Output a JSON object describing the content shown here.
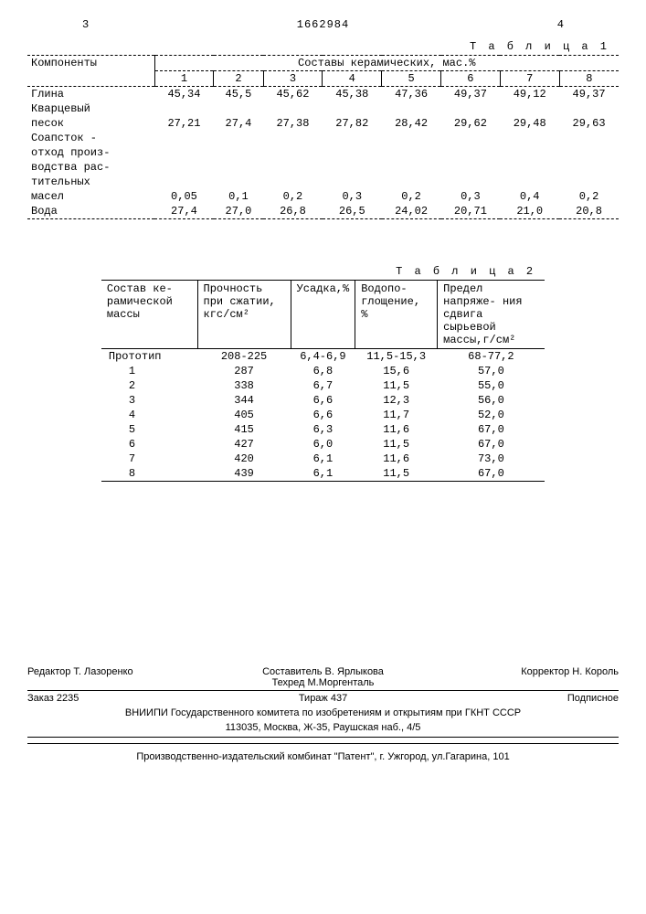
{
  "header": {
    "left_page": "3",
    "patent": "1662984",
    "right_page": "4"
  },
  "table1": {
    "title": "Т а б л и ц а   1",
    "head_components": "Компоненты",
    "head_group": "Составы керамических, мас.%",
    "cols": [
      "1",
      "2",
      "3",
      "4",
      "5",
      "6",
      "7",
      "8"
    ],
    "rows": [
      {
        "label": "Глина",
        "v": [
          "45,34",
          "45,5",
          "45,62",
          "45,38",
          "47,36",
          "49,37",
          "49,12",
          "49,37"
        ]
      },
      {
        "label": "Кварцевый",
        "v": [
          "",
          "",
          "",
          "",
          "",
          "",
          "",
          ""
        ]
      },
      {
        "label": "песок",
        "v": [
          "27,21",
          "27,4",
          "27,38",
          "27,82",
          "28,42",
          "29,62",
          "29,48",
          "29,63"
        ]
      },
      {
        "label": "Соапсток -",
        "v": [
          "",
          "",
          "",
          "",
          "",
          "",
          "",
          ""
        ]
      },
      {
        "label": "отход произ-",
        "v": [
          "",
          "",
          "",
          "",
          "",
          "",
          "",
          ""
        ]
      },
      {
        "label": "водства рас-",
        "v": [
          "",
          "",
          "",
          "",
          "",
          "",
          "",
          ""
        ]
      },
      {
        "label": "тительных",
        "v": [
          "",
          "",
          "",
          "",
          "",
          "",
          "",
          ""
        ]
      },
      {
        "label": "масел",
        "v": [
          "0,05",
          "0,1",
          "0,2",
          "0,3",
          "0,2",
          "0,3",
          "0,4",
          "0,2"
        ]
      },
      {
        "label": "Вода",
        "v": [
          "27,4",
          "27,0",
          "26,8",
          "26,5",
          "24,02",
          "20,71",
          "21,0",
          "20,8"
        ]
      }
    ]
  },
  "table2": {
    "title": "Т а б л и ц а   2",
    "head": [
      "Состав ке- рамической массы",
      "Прочность при сжатии, кгс/см²",
      "Усадка,%",
      "Водопо- глощение, %",
      "Предел напряже- ния сдвига сырьевой массы,г/см²"
    ],
    "rows": [
      {
        "c": [
          "Прототип",
          "208-225",
          "6,4-6,9",
          "11,5-15,3",
          "68-77,2"
        ],
        "indent": false
      },
      {
        "c": [
          "1",
          "287",
          "6,8",
          "15,6",
          "57,0"
        ],
        "indent": true
      },
      {
        "c": [
          "2",
          "338",
          "6,7",
          "11,5",
          "55,0"
        ],
        "indent": true
      },
      {
        "c": [
          "3",
          "344",
          "6,6",
          "12,3",
          "56,0"
        ],
        "indent": true
      },
      {
        "c": [
          "4",
          "405",
          "6,6",
          "11,7",
          "52,0"
        ],
        "indent": true
      },
      {
        "c": [
          "5",
          "415",
          "6,3",
          "11,6",
          "67,0"
        ],
        "indent": true
      },
      {
        "c": [
          "6",
          "427",
          "6,0",
          "11,5",
          "67,0"
        ],
        "indent": true
      },
      {
        "c": [
          "7",
          "420",
          "6,1",
          "11,6",
          "73,0"
        ],
        "indent": true
      },
      {
        "c": [
          "8",
          "439",
          "6,1",
          "11,5",
          "67,0"
        ],
        "indent": true
      }
    ]
  },
  "footer": {
    "editor": "Редактор Т. Лазоренко",
    "compiler": "Составитель В. Ярлыкова",
    "techred": "Техред М.Моргенталь",
    "corrector": "Корректор  Н. Король",
    "order": "Заказ 2235",
    "tirage": "Тираж 437",
    "subscription": "Подписное",
    "pub1": "ВНИИПИ Государственного комитета по изобретениям и открытиям при ГКНТ СССР",
    "pub2": "113035, Москва, Ж-35, Раушская наб., 4/5",
    "print": "Производственно-издательский комбинат \"Патент\", г. Ужгород, ул.Гагарина, 101"
  }
}
